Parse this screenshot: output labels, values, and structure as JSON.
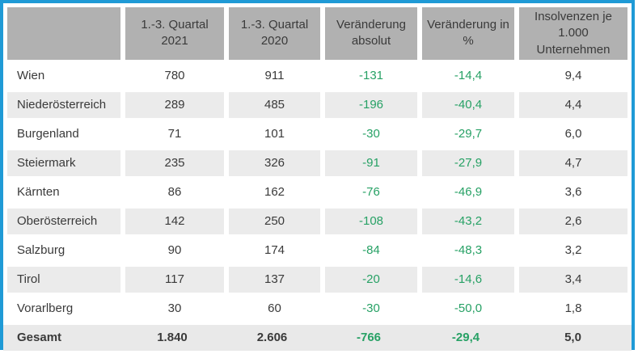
{
  "colors": {
    "frame_border": "#1f9ad6",
    "header_background": "#b1b1b1",
    "shaded_row_background": "#ebebeb",
    "total_row_background": "#e9e9e9",
    "text": "#3a3a3a",
    "negative_change_green": "#27a165"
  },
  "chart_data": {
    "type": "table",
    "columns": [
      "",
      "1.-3. Quartal 2021",
      "1.-3. Quartal 2020",
      "Veränderung absolut",
      "Veränderung in %",
      "Insolvenzen je 1.000 Unternehmen"
    ],
    "rows": [
      {
        "region": "Wien",
        "values": [
          "780",
          "911",
          "-131",
          "-14,4",
          "9,4"
        ],
        "shaded": false,
        "total": false
      },
      {
        "region": "Niederösterreich",
        "values": [
          "289",
          "485",
          "-196",
          "-40,4",
          "4,4"
        ],
        "shaded": true,
        "total": false
      },
      {
        "region": "Burgenland",
        "values": [
          "71",
          "101",
          "-30",
          "-29,7",
          "6,0"
        ],
        "shaded": false,
        "total": false
      },
      {
        "region": "Steiermark",
        "values": [
          "235",
          "326",
          "-91",
          "-27,9",
          "4,7"
        ],
        "shaded": true,
        "total": false
      },
      {
        "region": "Kärnten",
        "values": [
          "86",
          "162",
          "-76",
          "-46,9",
          "3,6"
        ],
        "shaded": false,
        "total": false
      },
      {
        "region": "Oberösterreich",
        "values": [
          "142",
          "250",
          "-108",
          "-43,2",
          "2,6"
        ],
        "shaded": true,
        "total": false
      },
      {
        "region": "Salzburg",
        "values": [
          "90",
          "174",
          "-84",
          "-48,3",
          "3,2"
        ],
        "shaded": false,
        "total": false
      },
      {
        "region": "Tirol",
        "values": [
          "117",
          "137",
          "-20",
          "-14,6",
          "3,4"
        ],
        "shaded": true,
        "total": false
      },
      {
        "region": "Vorarlberg",
        "values": [
          "30",
          "60",
          "-30",
          "-50,0",
          "1,8"
        ],
        "shaded": false,
        "total": false
      },
      {
        "region": "Gesamt",
        "values": [
          "1.840",
          "2.606",
          "-766",
          "-29,4",
          "5,0"
        ],
        "shaded": false,
        "total": true
      }
    ],
    "green_value_columns": [
      2,
      3
    ],
    "legend_position": "none",
    "grid": false
  }
}
